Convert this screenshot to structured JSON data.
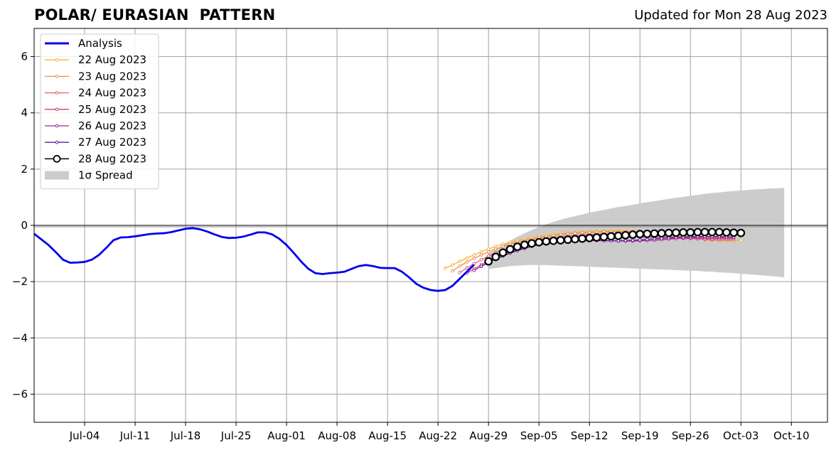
{
  "header": {
    "title": "POLAR/ EURASIAN  PATTERN",
    "subtitle": "Updated for Mon 28 Aug 2023"
  },
  "chart_data": {
    "type": "line",
    "title": "POLAR/ EURASIAN  PATTERN",
    "subtitle": "Updated for Mon 28 Aug 2023",
    "xlabel": "",
    "ylabel": "",
    "xlim": [
      "2023-06-27",
      "2023-10-15"
    ],
    "ylim": [
      -7,
      7
    ],
    "x_ticks": [
      "Jul-04",
      "Jul-11",
      "Jul-18",
      "Jul-25",
      "Aug-01",
      "Aug-08",
      "Aug-15",
      "Aug-22",
      "Aug-29",
      "Sep-05",
      "Sep-12",
      "Sep-19",
      "Sep-26",
      "Oct-03",
      "Oct-10"
    ],
    "y_ticks": [
      -6,
      -4,
      -2,
      0,
      2,
      4,
      6
    ],
    "y_tick_labels": [
      "−6",
      "−4",
      "−2",
      "0",
      "2",
      "4",
      "6"
    ],
    "grid": true,
    "zero_line": 0,
    "legend_position": "top-left",
    "analysis": {
      "name": "Analysis",
      "color": "#0000ee",
      "start_date": "2023-06-27",
      "values": [
        -0.3,
        -0.5,
        -0.7,
        -0.95,
        -1.22,
        -1.33,
        -1.32,
        -1.3,
        -1.22,
        -1.05,
        -0.8,
        -0.53,
        -0.43,
        -0.42,
        -0.39,
        -0.35,
        -0.31,
        -0.29,
        -0.28,
        -0.24,
        -0.18,
        -0.12,
        -0.1,
        -0.14,
        -0.22,
        -0.32,
        -0.41,
        -0.45,
        -0.44,
        -0.4,
        -0.33,
        -0.25,
        -0.25,
        -0.32,
        -0.48,
        -0.7,
        -0.98,
        -1.28,
        -1.54,
        -1.7,
        -1.73,
        -1.7,
        -1.68,
        -1.65,
        -1.55,
        -1.45,
        -1.41,
        -1.45,
        -1.51,
        -1.52,
        -1.52,
        -1.65,
        -1.85,
        -2.08,
        -2.22,
        -2.3,
        -2.33,
        -2.3,
        -2.15,
        -1.9,
        -1.65,
        -1.4
      ]
    },
    "forecasts": [
      {
        "name": "22 Aug 2023",
        "color": "#f6b53c",
        "start_date": "2023-08-23",
        "values": [
          -1.52,
          -1.41,
          -1.28,
          -1.16,
          -1.05,
          -0.94,
          -0.84,
          -0.75,
          -0.67,
          -0.6,
          -0.54,
          -0.48,
          -0.43,
          -0.39,
          -0.35,
          -0.32,
          -0.29,
          -0.27,
          -0.25,
          -0.23,
          -0.22,
          -0.21,
          -0.2,
          -0.19,
          -0.19,
          -0.19,
          -0.2,
          -0.21,
          -0.23,
          -0.25,
          -0.27,
          -0.3,
          -0.33,
          -0.36,
          -0.39,
          -0.42,
          -0.45,
          -0.48,
          -0.5,
          -0.52,
          -0.53,
          -0.53
        ]
      },
      {
        "name": "23 Aug 2023",
        "color": "#f08a4b",
        "start_date": "2023-08-24",
        "values": [
          -1.62,
          -1.45,
          -1.3,
          -1.17,
          -1.05,
          -0.94,
          -0.84,
          -0.75,
          -0.67,
          -0.6,
          -0.54,
          -0.49,
          -0.44,
          -0.4,
          -0.36,
          -0.33,
          -0.3,
          -0.28,
          -0.26,
          -0.25,
          -0.24,
          -0.23,
          -0.23,
          -0.23,
          -0.23,
          -0.24,
          -0.26,
          -0.28,
          -0.3,
          -0.33,
          -0.36,
          -0.39,
          -0.42,
          -0.45,
          -0.48,
          -0.51,
          -0.53,
          -0.54,
          -0.55,
          -0.55
        ]
      },
      {
        "name": "24 Aug 2023",
        "color": "#df5f6e",
        "start_date": "2023-08-25",
        "values": [
          -1.68,
          -1.52,
          -1.36,
          -1.22,
          -1.09,
          -0.97,
          -0.87,
          -0.78,
          -0.7,
          -0.63,
          -0.57,
          -0.52,
          -0.48,
          -0.44,
          -0.41,
          -0.38,
          -0.36,
          -0.34,
          -0.33,
          -0.32,
          -0.31,
          -0.31,
          -0.31,
          -0.31,
          -0.32,
          -0.33,
          -0.35,
          -0.37,
          -0.39,
          -0.41,
          -0.43,
          -0.45,
          -0.47,
          -0.48,
          -0.49,
          -0.5,
          -0.5,
          -0.5,
          -0.5
        ]
      },
      {
        "name": "25 Aug 2023",
        "color": "#c5407e",
        "start_date": "2023-08-26",
        "values": [
          -1.7,
          -1.55,
          -1.4,
          -1.26,
          -1.13,
          -1.01,
          -0.91,
          -0.82,
          -0.74,
          -0.67,
          -0.62,
          -0.57,
          -0.53,
          -0.5,
          -0.47,
          -0.45,
          -0.43,
          -0.42,
          -0.41,
          -0.4,
          -0.4,
          -0.4,
          -0.4,
          -0.4,
          -0.41,
          -0.42,
          -0.43,
          -0.44,
          -0.45,
          -0.46,
          -0.47,
          -0.47,
          -0.47,
          -0.47,
          -0.47,
          -0.46,
          -0.46,
          -0.45
        ]
      },
      {
        "name": "26 Aug 2023",
        "color": "#9a2a95",
        "start_date": "2023-08-27",
        "values": [
          -1.6,
          -1.46,
          -1.32,
          -1.19,
          -1.07,
          -0.96,
          -0.87,
          -0.79,
          -0.72,
          -0.66,
          -0.61,
          -0.57,
          -0.54,
          -0.52,
          -0.51,
          -0.51,
          -0.52,
          -0.53,
          -0.54,
          -0.55,
          -0.56,
          -0.56,
          -0.56,
          -0.55,
          -0.54,
          -0.53,
          -0.51,
          -0.49,
          -0.47,
          -0.45,
          -0.44,
          -0.43,
          -0.42,
          -0.42,
          -0.42,
          -0.42,
          -0.42
        ]
      },
      {
        "name": "27 Aug 2023",
        "color": "#6a1a9a",
        "start_date": "2023-08-28",
        "values": [
          -1.45,
          -1.32,
          -1.2,
          -1.09,
          -0.99,
          -0.9,
          -0.82,
          -0.75,
          -0.69,
          -0.64,
          -0.6,
          -0.57,
          -0.55,
          -0.54,
          -0.54,
          -0.54,
          -0.54,
          -0.55,
          -0.55,
          -0.55,
          -0.54,
          -0.53,
          -0.52,
          -0.5,
          -0.48,
          -0.46,
          -0.44,
          -0.42,
          -0.41,
          -0.4,
          -0.4,
          -0.4,
          -0.4,
          -0.4,
          -0.41,
          -0.42
        ]
      },
      {
        "name": "28 Aug 2023",
        "color": "#000000",
        "start_date": "2023-08-29",
        "values": [
          -1.28,
          -1.12,
          -0.97,
          -0.85,
          -0.76,
          -0.69,
          -0.64,
          -0.6,
          -0.57,
          -0.55,
          -0.53,
          -0.51,
          -0.49,
          -0.47,
          -0.45,
          -0.43,
          -0.41,
          -0.39,
          -0.37,
          -0.35,
          -0.33,
          -0.31,
          -0.3,
          -0.29,
          -0.28,
          -0.27,
          -0.26,
          -0.25,
          -0.25,
          -0.24,
          -0.24,
          -0.24,
          -0.24,
          -0.25,
          -0.26,
          -0.27
        ]
      }
    ],
    "spread": {
      "name": "1σ Spread",
      "color": "#cccccc",
      "start_date": "2023-08-29",
      "upper": [
        -1.0,
        -0.85,
        -0.7,
        -0.55,
        -0.4,
        -0.28,
        -0.16,
        -0.06,
        0.04,
        0.12,
        0.2,
        0.27,
        0.33,
        0.39,
        0.45,
        0.5,
        0.55,
        0.6,
        0.65,
        0.69,
        0.73,
        0.78,
        0.82,
        0.86,
        0.9,
        0.94,
        0.98,
        1.01,
        1.05,
        1.08,
        1.12,
        1.15,
        1.17,
        1.2,
        1.22,
        1.24,
        1.26,
        1.28,
        1.29,
        1.31,
        1.32,
        1.33
      ],
      "lower": [
        -1.55,
        -1.52,
        -1.48,
        -1.45,
        -1.43,
        -1.42,
        -1.41,
        -1.41,
        -1.41,
        -1.42,
        -1.43,
        -1.44,
        -1.45,
        -1.46,
        -1.47,
        -1.48,
        -1.49,
        -1.5,
        -1.51,
        -1.52,
        -1.53,
        -1.54,
        -1.55,
        -1.56,
        -1.57,
        -1.58,
        -1.59,
        -1.6,
        -1.61,
        -1.62,
        -1.64,
        -1.65,
        -1.67,
        -1.68,
        -1.7,
        -1.72,
        -1.74,
        -1.76,
        -1.78,
        -1.8,
        -1.82,
        -1.85
      ]
    }
  }
}
